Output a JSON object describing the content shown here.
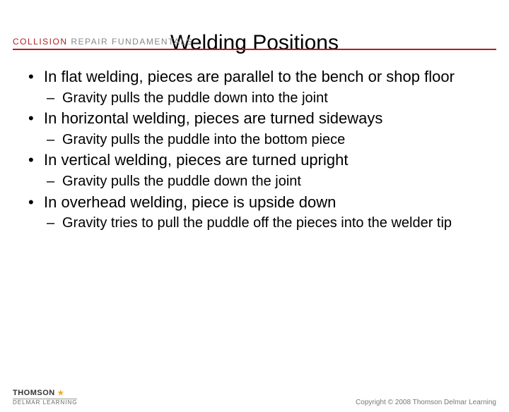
{
  "header": {
    "brand_part1": "COLLISION",
    "brand_part2": "REPAIR FUNDAMENTALS",
    "rule_color": "#b01f24"
  },
  "title": "Welding Positions",
  "bullets": [
    {
      "text": "In flat welding, pieces are parallel to the bench or shop floor",
      "sub": [
        "Gravity pulls the puddle down into the joint"
      ]
    },
    {
      "text": "In horizontal welding, pieces are turned sideways",
      "sub": [
        "Gravity pulls the puddle into the bottom piece"
      ]
    },
    {
      "text": "In vertical welding, pieces are turned upright",
      "sub": [
        "Gravity pulls the puddle down the joint"
      ]
    },
    {
      "text": "In overhead welding, piece is upside down",
      "sub": [
        "Gravity tries to pull the puddle off the pieces into the welder tip"
      ]
    }
  ],
  "footer": {
    "thomson": "THOMSON",
    "delmar": "DELMAR LEARNING",
    "copyright": "Copyright © 2008 Thomson Delmar Learning"
  },
  "colors": {
    "accent": "#b01f24",
    "text": "#000000",
    "background": "#ffffff",
    "footer_text": "#777777"
  },
  "typography": {
    "title_fontsize": 30,
    "bullet_fontsize": 22,
    "subbullet_fontsize": 20,
    "brand_fontsize": 12,
    "footer_fontsize": 10
  }
}
